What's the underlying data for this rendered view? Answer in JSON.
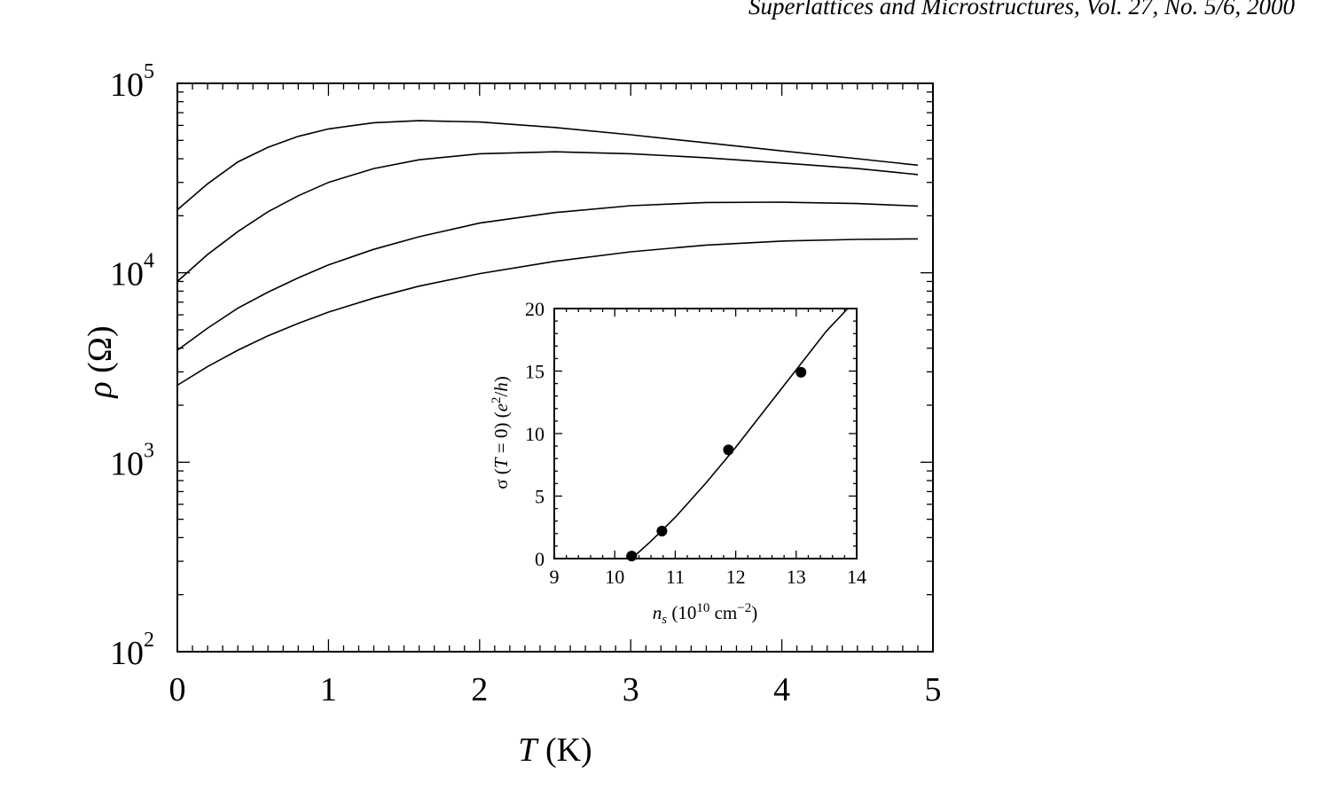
{
  "header": {
    "journal": "Superlattices and Microstructures, Vol. 27, No. 5/6, 2000"
  },
  "chart_data": [
    {
      "type": "line",
      "title": "",
      "xlabel_var": "T",
      "xlabel_unit": " (K)",
      "ylabel_var": "ρ",
      "ylabel_unit": " (Ω)",
      "xlim": [
        0,
        5
      ],
      "y_scale": "log",
      "ylim": [
        100,
        100000
      ],
      "x_ticks": [
        "0",
        "1",
        "2",
        "3",
        "4",
        "5"
      ],
      "y_ticks": [
        {
          "base": "10",
          "exp": "2",
          "value": 100
        },
        {
          "base": "10",
          "exp": "3",
          "value": 1000
        },
        {
          "base": "10",
          "exp": "4",
          "value": 10000
        },
        {
          "base": "10",
          "exp": "5",
          "value": 100000
        }
      ],
      "grid": false,
      "series": [
        {
          "x": [
            0,
            0.2,
            0.4,
            0.6,
            0.8,
            1.0,
            1.3,
            1.6,
            2.0,
            2.5,
            3.0,
            3.5,
            4.0,
            4.5,
            4.9
          ],
          "y": [
            21500,
            29500,
            38500,
            46000,
            52500,
            57500,
            62000,
            63500,
            62500,
            58500,
            53500,
            48500,
            44000,
            40000,
            37000
          ]
        },
        {
          "x": [
            0,
            0.2,
            0.4,
            0.6,
            0.8,
            1.0,
            1.3,
            1.6,
            2.0,
            2.5,
            3.0,
            3.5,
            4.0,
            4.5,
            4.9
          ],
          "y": [
            9000,
            12500,
            16500,
            21000,
            25500,
            30000,
            35500,
            39500,
            42500,
            43500,
            42500,
            40500,
            38000,
            35500,
            33000
          ]
        },
        {
          "x": [
            0,
            0.2,
            0.4,
            0.6,
            0.8,
            1.0,
            1.3,
            1.6,
            2.0,
            2.5,
            3.0,
            3.5,
            4.0,
            4.5,
            4.9
          ],
          "y": [
            3900,
            5100,
            6500,
            7900,
            9400,
            11000,
            13300,
            15500,
            18300,
            20800,
            22600,
            23500,
            23600,
            23200,
            22500
          ]
        },
        {
          "x": [
            0,
            0.2,
            0.4,
            0.6,
            0.8,
            1.0,
            1.3,
            1.6,
            2.0,
            2.5,
            3.0,
            3.5,
            4.0,
            4.5,
            4.9
          ],
          "y": [
            2550,
            3200,
            3900,
            4650,
            5400,
            6200,
            7350,
            8500,
            9900,
            11500,
            12900,
            14000,
            14700,
            15000,
            15100
          ]
        }
      ]
    },
    {
      "type": "scatter",
      "title": "",
      "xlabel_var": "n",
      "xlabel_sub": "s",
      "xlabel_unit_pre": " (10",
      "xlabel_unit_exp1": "10",
      "xlabel_unit_mid": " cm",
      "xlabel_unit_exp2": "−2",
      "xlabel_unit_post": ")",
      "ylabel_sigma": "σ (",
      "ylabel_T": "T",
      "ylabel_eq": " = 0) (",
      "ylabel_e": "e",
      "ylabel_exp": "2",
      "ylabel_slash": "/",
      "ylabel_h": "h",
      "ylabel_close": ")",
      "xlim": [
        9,
        14
      ],
      "ylim": [
        0,
        20
      ],
      "x_ticks": [
        "9",
        "10",
        "11",
        "12",
        "13",
        "14"
      ],
      "y_ticks": [
        "0",
        "5",
        "10",
        "15",
        "20"
      ],
      "grid": false,
      "points": [
        {
          "x": 10.28,
          "y": 0.2
        },
        {
          "x": 10.78,
          "y": 2.2
        },
        {
          "x": 11.88,
          "y": 8.7
        },
        {
          "x": 13.08,
          "y": 14.9
        }
      ],
      "fit_line": {
        "x": [
          10.28,
          10.6,
          11.0,
          11.5,
          12.0,
          12.5,
          13.0,
          13.5,
          13.95
        ],
        "y": [
          0.0,
          1.4,
          3.3,
          6.0,
          8.9,
          12.0,
          15.1,
          18.2,
          20.5
        ]
      }
    }
  ]
}
